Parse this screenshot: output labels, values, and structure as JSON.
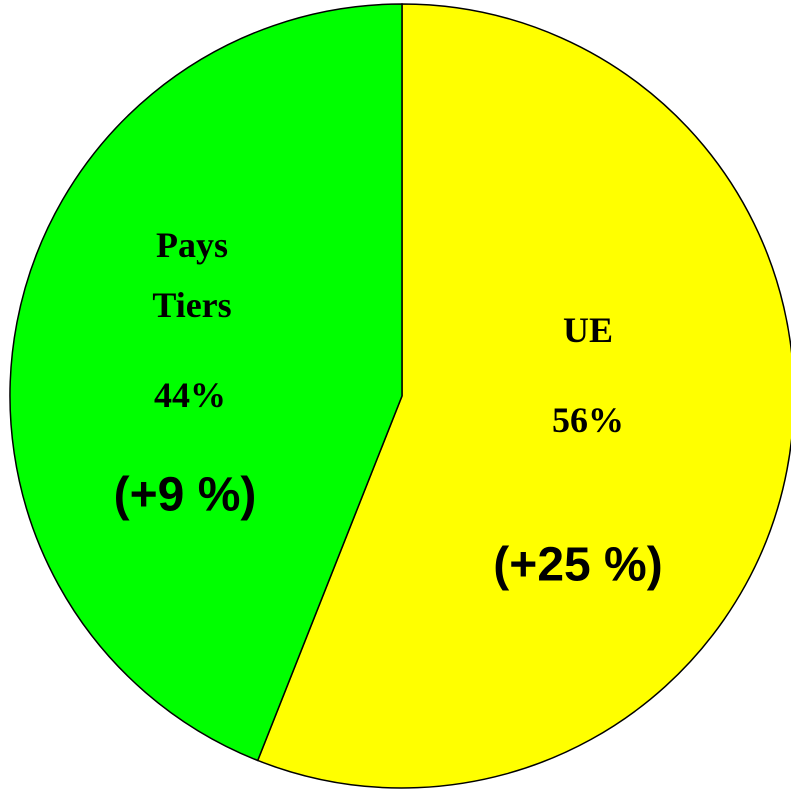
{
  "chart_data": {
    "type": "pie",
    "categories": [
      "UE",
      "Pays Tiers"
    ],
    "values": [
      56,
      44
    ],
    "value_labels": [
      "56%",
      "44%"
    ],
    "annotations": [
      "(+25 %)",
      "(+9 %)"
    ],
    "colors": [
      "#ffff00",
      "#00ff00"
    ]
  }
}
